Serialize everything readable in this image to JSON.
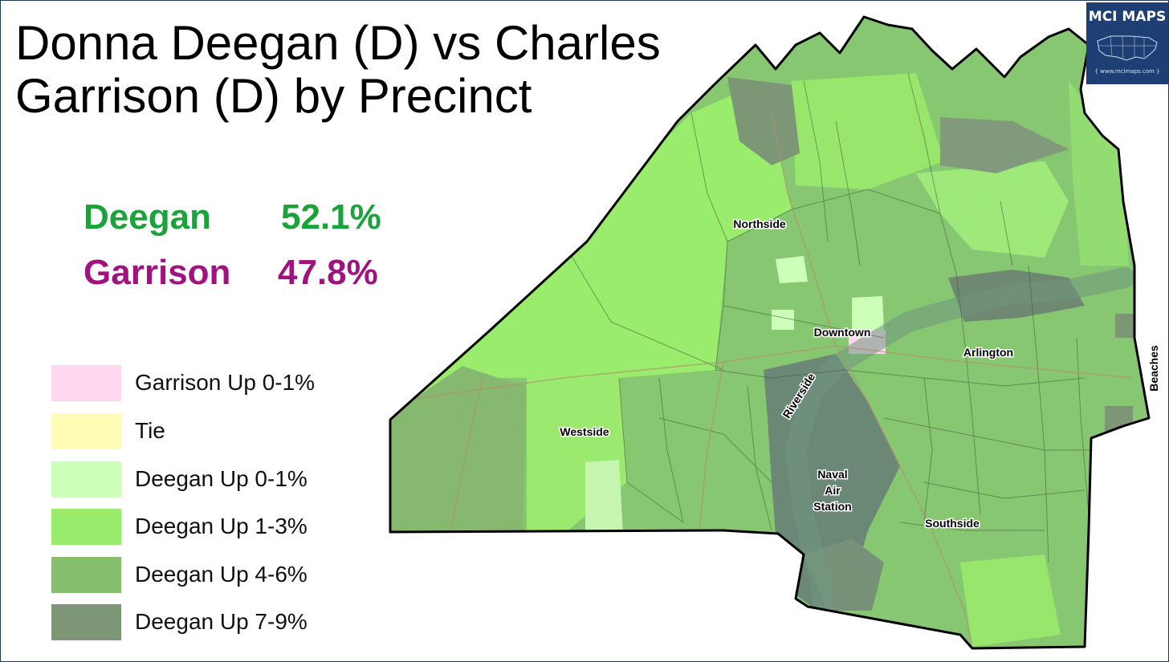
{
  "title": {
    "line1": "Donna Deegan (D) vs Charles",
    "line2": "Garrison (D) by Precinct"
  },
  "results": [
    {
      "candidate": "Deegan",
      "share": "52.1%",
      "color": "#1aa33a"
    },
    {
      "candidate": "Garrison",
      "share": "47.8%",
      "color": "#a0127f"
    }
  ],
  "legend": [
    {
      "label": "Garrison Up 0-1%",
      "color": "#fdd8ee"
    },
    {
      "label": "Tie",
      "color": "#fffcb6"
    },
    {
      "label": "Deegan Up 0-1%",
      "color": "#ccffb8"
    },
    {
      "label": "Deegan Up 1-3%",
      "color": "#99ec6c"
    },
    {
      "label": "Deegan Up 4-6%",
      "color": "#86bf6e"
    },
    {
      "label": "Deegan Up 7-9%",
      "color": "#7d9676"
    }
  ],
  "map": {
    "labels": {
      "northside": "Northside",
      "downtown": "Downtown",
      "arlington": "Arlington",
      "riverside": "Riverside",
      "westside": "Westside",
      "naval_line1": "Naval",
      "naval_line2": "Air",
      "naval_line3": "Station",
      "southside": "Southside",
      "beaches": "Beaches"
    }
  },
  "logo": {
    "text": "MCI MAPS",
    "sub": "{ www.mcimaps.com }"
  }
}
